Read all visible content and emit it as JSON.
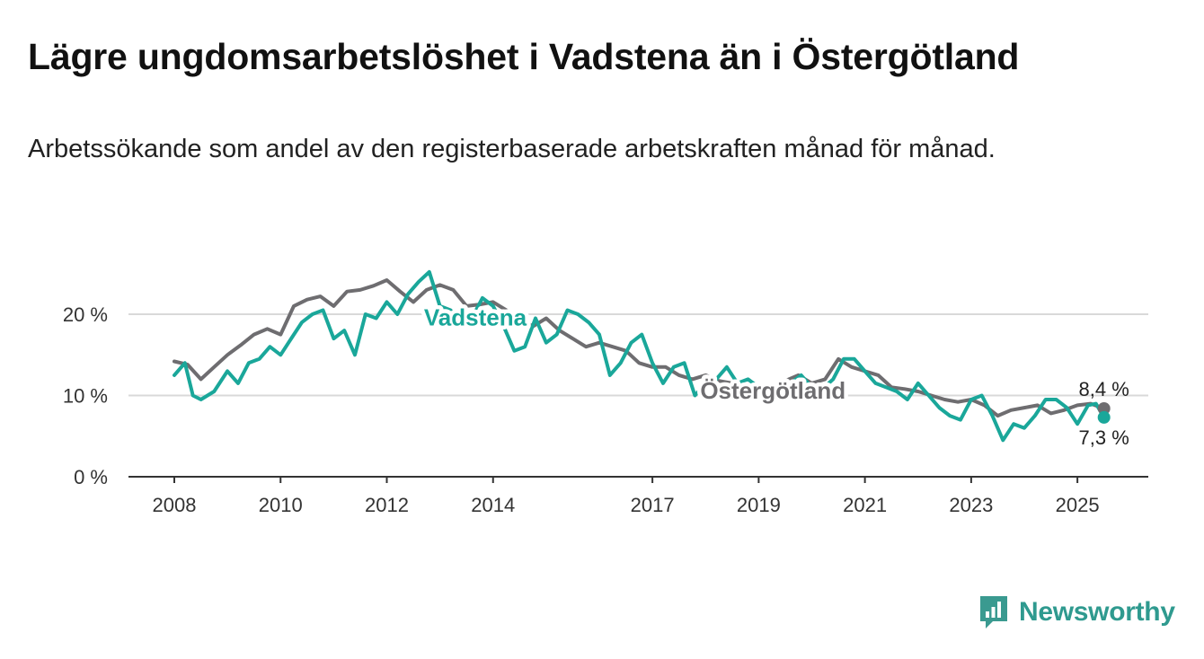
{
  "title": "Lägre ungdomsarbetslöshet i Vadstena än i Östergötland",
  "subtitle": "Arbetssökande som andel av den registerbaserade arbetskraften månad för månad.",
  "brand": {
    "name": "Newsworthy",
    "icon": "newsworthy-logo-icon",
    "color": "#3a9a90"
  },
  "colors": {
    "vadstena": "#1aa79a",
    "ostergotland": "#6e6d70",
    "grid": "#d9d9d9",
    "axis": "#333333"
  },
  "chart_data": {
    "type": "line",
    "ylim": [
      0,
      26
    ],
    "yticks": [
      0,
      10,
      20
    ],
    "ytick_labels": [
      "0 %",
      "10 %",
      "20 %"
    ],
    "xlim": [
      2008,
      2025.75
    ],
    "xticks": [
      2008,
      2010,
      2012,
      2014,
      2017,
      2019,
      2021,
      2023,
      2025
    ],
    "xtick_labels": [
      "2008",
      "2010",
      "2012",
      "2014",
      "2017",
      "2019",
      "2021",
      "2023",
      "2025"
    ],
    "grid": true,
    "series": [
      {
        "name": "Östergötland",
        "label_at": [
          2017.9,
          9.6
        ],
        "end_label": "8,4 %",
        "data": [
          [
            2008.0,
            14.2
          ],
          [
            2008.25,
            13.8
          ],
          [
            2008.5,
            12.0
          ],
          [
            2008.75,
            13.5
          ],
          [
            2009.0,
            15.0
          ],
          [
            2009.25,
            16.2
          ],
          [
            2009.5,
            17.5
          ],
          [
            2009.75,
            18.2
          ],
          [
            2010.0,
            17.5
          ],
          [
            2010.25,
            21.0
          ],
          [
            2010.5,
            21.8
          ],
          [
            2010.75,
            22.2
          ],
          [
            2011.0,
            21.0
          ],
          [
            2011.25,
            22.8
          ],
          [
            2011.5,
            23.0
          ],
          [
            2011.75,
            23.5
          ],
          [
            2012.0,
            24.2
          ],
          [
            2012.25,
            22.8
          ],
          [
            2012.5,
            21.5
          ],
          [
            2012.75,
            23.0
          ],
          [
            2013.0,
            23.6
          ],
          [
            2013.25,
            23.0
          ],
          [
            2013.5,
            21.0
          ],
          [
            2013.75,
            21.2
          ],
          [
            2014.0,
            21.5
          ],
          [
            2014.25,
            20.5
          ],
          [
            2014.5,
            19.5
          ],
          [
            2014.75,
            18.5
          ],
          [
            2015.0,
            19.5
          ],
          [
            2015.25,
            18.0
          ],
          [
            2015.5,
            17.0
          ],
          [
            2015.75,
            16.0
          ],
          [
            2016.0,
            16.5
          ],
          [
            2016.25,
            16.0
          ],
          [
            2016.5,
            15.5
          ],
          [
            2016.75,
            14.0
          ],
          [
            2017.0,
            13.5
          ],
          [
            2017.25,
            13.5
          ],
          [
            2017.5,
            12.5
          ],
          [
            2017.75,
            12.0
          ],
          [
            2018.0,
            12.5
          ],
          [
            2018.25,
            11.8
          ],
          [
            2018.5,
            11.5
          ],
          [
            2018.75,
            11.0
          ],
          [
            2019.0,
            11.2
          ],
          [
            2019.25,
            11.0
          ],
          [
            2019.5,
            11.8
          ],
          [
            2019.75,
            12.5
          ],
          [
            2020.0,
            11.5
          ],
          [
            2020.25,
            12.0
          ],
          [
            2020.5,
            14.5
          ],
          [
            2020.75,
            13.5
          ],
          [
            2021.0,
            13.0
          ],
          [
            2021.25,
            12.5
          ],
          [
            2021.5,
            11.0
          ],
          [
            2021.75,
            10.8
          ],
          [
            2022.0,
            10.5
          ],
          [
            2022.25,
            10.0
          ],
          [
            2022.5,
            9.5
          ],
          [
            2022.75,
            9.2
          ],
          [
            2023.0,
            9.5
          ],
          [
            2023.25,
            8.8
          ],
          [
            2023.5,
            7.5
          ],
          [
            2023.75,
            8.2
          ],
          [
            2024.0,
            8.5
          ],
          [
            2024.25,
            8.8
          ],
          [
            2024.5,
            7.8
          ],
          [
            2024.75,
            8.2
          ],
          [
            2025.0,
            8.8
          ],
          [
            2025.25,
            9.0
          ],
          [
            2025.5,
            8.4
          ]
        ]
      },
      {
        "name": "Vadstena",
        "label_at": [
          2012.7,
          18.6
        ],
        "end_label": "7,3 %",
        "data": [
          [
            2008.0,
            12.5
          ],
          [
            2008.2,
            14.0
          ],
          [
            2008.35,
            10.0
          ],
          [
            2008.5,
            9.5
          ],
          [
            2008.75,
            10.5
          ],
          [
            2009.0,
            13.0
          ],
          [
            2009.2,
            11.5
          ],
          [
            2009.4,
            14.0
          ],
          [
            2009.6,
            14.5
          ],
          [
            2009.8,
            16.0
          ],
          [
            2010.0,
            15.0
          ],
          [
            2010.2,
            17.0
          ],
          [
            2010.4,
            19.0
          ],
          [
            2010.6,
            20.0
          ],
          [
            2010.8,
            20.5
          ],
          [
            2011.0,
            17.0
          ],
          [
            2011.2,
            18.0
          ],
          [
            2011.4,
            15.0
          ],
          [
            2011.6,
            20.0
          ],
          [
            2011.8,
            19.5
          ],
          [
            2012.0,
            21.5
          ],
          [
            2012.2,
            20.0
          ],
          [
            2012.4,
            22.5
          ],
          [
            2012.6,
            24.0
          ],
          [
            2012.8,
            25.2
          ],
          [
            2013.0,
            21.0
          ],
          [
            2013.2,
            20.5
          ],
          [
            2013.4,
            19.0
          ],
          [
            2013.6,
            19.5
          ],
          [
            2013.8,
            22.0
          ],
          [
            2014.0,
            21.0
          ],
          [
            2014.2,
            18.5
          ],
          [
            2014.4,
            15.5
          ],
          [
            2014.6,
            16.0
          ],
          [
            2014.8,
            19.5
          ],
          [
            2015.0,
            16.5
          ],
          [
            2015.2,
            17.5
          ],
          [
            2015.4,
            20.5
          ],
          [
            2015.6,
            20.0
          ],
          [
            2015.8,
            19.0
          ],
          [
            2016.0,
            17.5
          ],
          [
            2016.2,
            12.5
          ],
          [
            2016.4,
            14.0
          ],
          [
            2016.6,
            16.5
          ],
          [
            2016.8,
            17.5
          ],
          [
            2017.0,
            14.0
          ],
          [
            2017.2,
            11.5
          ],
          [
            2017.4,
            13.5
          ],
          [
            2017.6,
            14.0
          ],
          [
            2017.8,
            10.0
          ],
          [
            2018.0,
            11.5
          ],
          [
            2018.2,
            12.0
          ],
          [
            2018.4,
            13.5
          ],
          [
            2018.6,
            11.5
          ],
          [
            2018.8,
            12.0
          ],
          [
            2019.0,
            11.0
          ],
          [
            2019.2,
            11.2
          ],
          [
            2019.4,
            11.0
          ],
          [
            2019.6,
            11.5
          ],
          [
            2019.8,
            12.5
          ],
          [
            2020.0,
            11.0
          ],
          [
            2020.2,
            10.8
          ],
          [
            2020.4,
            12.0
          ],
          [
            2020.6,
            14.5
          ],
          [
            2020.8,
            14.5
          ],
          [
            2021.0,
            13.0
          ],
          [
            2021.2,
            11.5
          ],
          [
            2021.4,
            11.0
          ],
          [
            2021.6,
            10.5
          ],
          [
            2021.8,
            9.5
          ],
          [
            2022.0,
            11.5
          ],
          [
            2022.2,
            10.0
          ],
          [
            2022.4,
            8.5
          ],
          [
            2022.6,
            7.5
          ],
          [
            2022.8,
            7.0
          ],
          [
            2023.0,
            9.5
          ],
          [
            2023.2,
            10.0
          ],
          [
            2023.4,
            7.5
          ],
          [
            2023.6,
            4.5
          ],
          [
            2023.8,
            6.5
          ],
          [
            2024.0,
            6.0
          ],
          [
            2024.2,
            7.5
          ],
          [
            2024.4,
            9.5
          ],
          [
            2024.6,
            9.5
          ],
          [
            2024.8,
            8.5
          ],
          [
            2025.0,
            6.5
          ],
          [
            2025.2,
            8.8
          ],
          [
            2025.35,
            9.0
          ],
          [
            2025.5,
            7.3
          ]
        ]
      }
    ]
  }
}
